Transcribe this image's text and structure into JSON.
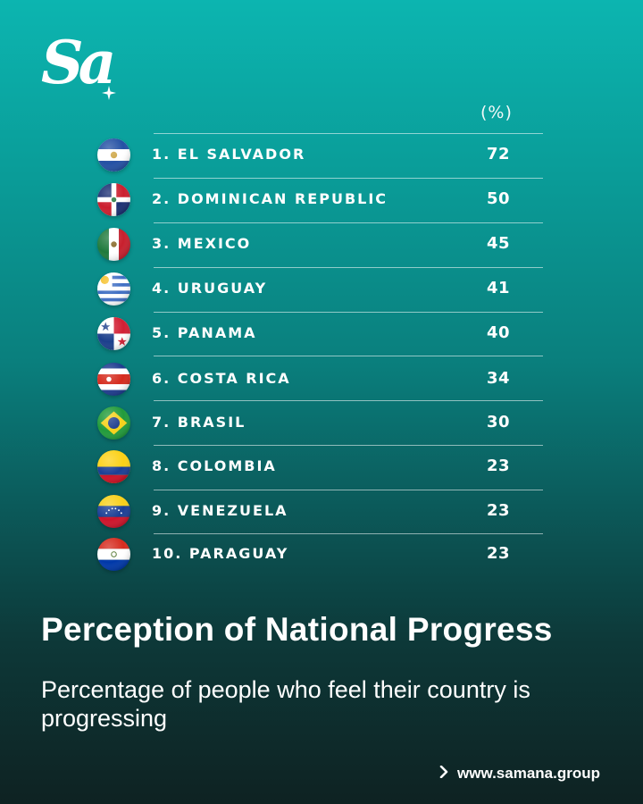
{
  "brand": {
    "logo_text": "Sa",
    "website": "www.samana.group",
    "website_icon": "chevron-right-icon"
  },
  "chart_data": {
    "type": "table",
    "title": "Perception of National Progress",
    "subtitle": "Percentage of people who feel their country is progressing",
    "unit_label": "(%)",
    "rows": [
      {
        "rank_label": "1. EL SALVADOR",
        "value": 72,
        "flag": "el-salvador-flag"
      },
      {
        "rank_label": "2. DOMINICAN REPUBLIC",
        "value": 50,
        "flag": "dominican-republic-flag"
      },
      {
        "rank_label": "3. MEXICO",
        "value": 45,
        "flag": "mexico-flag"
      },
      {
        "rank_label": "4. URUGUAY",
        "value": 41,
        "flag": "uruguay-flag"
      },
      {
        "rank_label": "5. PANAMA",
        "value": 40,
        "flag": "panama-flag"
      },
      {
        "rank_label": "6. COSTA RICA",
        "value": 34,
        "flag": "costa-rica-flag"
      },
      {
        "rank_label": "7. BRASIL",
        "value": 30,
        "flag": "brazil-flag"
      },
      {
        "rank_label": "8. COLOMBIA",
        "value": 23,
        "flag": "colombia-flag"
      },
      {
        "rank_label": "9. VENEZUELA",
        "value": 23,
        "flag": "venezuela-flag"
      },
      {
        "rank_label": "10. PARAGUAY",
        "value": 23,
        "flag": "paraguay-flag"
      }
    ]
  },
  "colors": {
    "background_top": "#0cb5b0",
    "background_bottom": "#0e2222",
    "text": "#ffffff"
  }
}
